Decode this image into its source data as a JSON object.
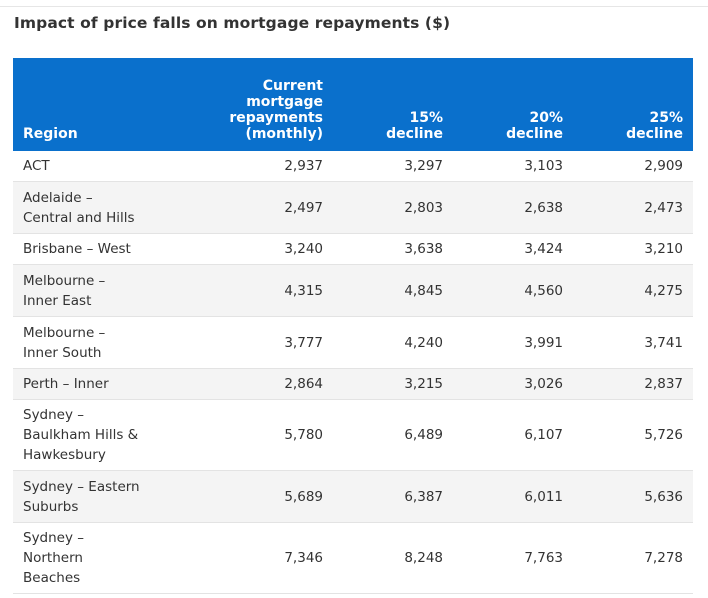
{
  "title": "Impact of price falls on mortgage repayments ($)",
  "chart_data": {
    "type": "table",
    "title": "Impact of price falls on mortgage repayments ($)",
    "columns": [
      "Region",
      "Current mortgage repayments (monthly)",
      "15% decline",
      "20% decline",
      "25% decline"
    ],
    "header_lines": [
      [
        "Region"
      ],
      [
        "Current",
        "mortgage",
        "repayments",
        "(monthly)"
      ],
      [
        "15%",
        "decline"
      ],
      [
        "20%",
        "decline"
      ],
      [
        "25%",
        "decline"
      ]
    ],
    "rows": [
      {
        "region": "ACT",
        "region_lines": [
          "ACT"
        ],
        "values": [
          "2,937",
          "3,297",
          "3,103",
          "2,909"
        ]
      },
      {
        "region": "Adelaide - Central and Hills",
        "region_lines": [
          "Adelaide –",
          "Central and Hills"
        ],
        "values": [
          "2,497",
          "2,803",
          "2,638",
          "2,473"
        ]
      },
      {
        "region": "Brisbane - West",
        "region_lines": [
          "Brisbane – West"
        ],
        "values": [
          "3,240",
          "3,638",
          "3,424",
          "3,210"
        ]
      },
      {
        "region": "Melbourne - Inner East",
        "region_lines": [
          "Melbourne –",
          "Inner East"
        ],
        "values": [
          "4,315",
          "4,845",
          "4,560",
          "4,275"
        ]
      },
      {
        "region": "Melbourne - Inner South",
        "region_lines": [
          "Melbourne –",
          "Inner South"
        ],
        "values": [
          "3,777",
          "4,240",
          "3,991",
          "3,741"
        ]
      },
      {
        "region": "Perth - Inner",
        "region_lines": [
          "Perth – Inner"
        ],
        "values": [
          "2,864",
          "3,215",
          "3,026",
          "2,837"
        ]
      },
      {
        "region": "Sydney - Baulkham Hills & Hawkesbury",
        "region_lines": [
          "Sydney –",
          "Baulkham Hills &",
          "Hawkesbury"
        ],
        "values": [
          "5,780",
          "6,489",
          "6,107",
          "5,726"
        ]
      },
      {
        "region": "Sydney - Eastern Suburbs",
        "region_lines": [
          "Sydney – Eastern",
          "Suburbs"
        ],
        "values": [
          "5,689",
          "6,387",
          "6,011",
          "5,636"
        ]
      },
      {
        "region": "Sydney - Northern Beaches",
        "region_lines": [
          "Sydney –",
          "Northern",
          "Beaches"
        ],
        "values": [
          "7,346",
          "8,248",
          "7,763",
          "7,278"
        ]
      }
    ]
  },
  "colors": {
    "header_bg": "#0a70cc",
    "header_text": "#ffffff",
    "body_text": "#333333",
    "row_alt_bg": "#f4f4f4",
    "row_border": "#e3e3e3"
  }
}
